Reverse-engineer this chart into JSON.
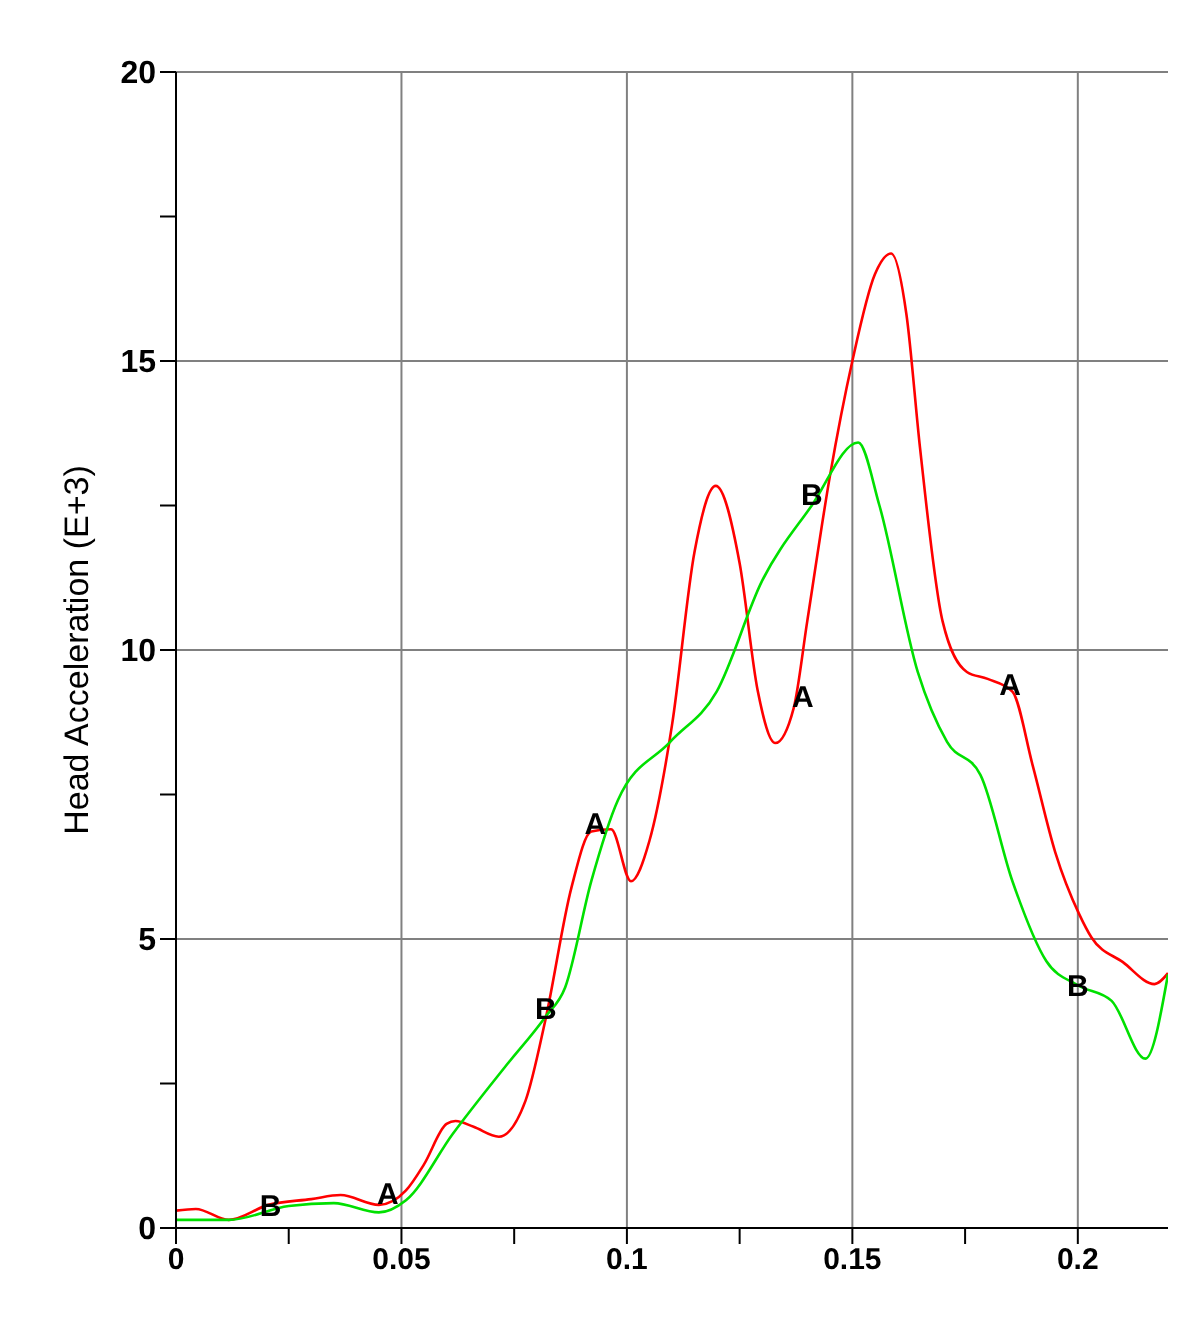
{
  "chart_data": {
    "type": "line",
    "ylabel": "Head Acceleration  (E+3)",
    "xlim": [
      0,
      0.22
    ],
    "ylim": [
      0,
      20
    ],
    "xticks": [
      0,
      {
        "value": 0.025,
        "label": null
      },
      0.05,
      {
        "value": 0.075,
        "label": null
      },
      0.1,
      {
        "value": 0.125,
        "label": null
      },
      0.15,
      {
        "value": 0.175,
        "label": null
      },
      0.2
    ],
    "yticks": [
      0,
      {
        "value": 2.5,
        "label": null
      },
      5,
      {
        "value": 7.5,
        "label": null
      },
      10,
      {
        "value": 12.5,
        "label": null
      },
      15,
      {
        "value": 17.5,
        "label": null
      },
      20
    ],
    "grid": true,
    "marker": "none",
    "line_style": "solid",
    "series": [
      {
        "color": "#ff0000",
        "x": [
          0,
          0.0044,
          0.0117,
          0.0205,
          0.03,
          0.0365,
          0.045,
          0.051,
          0.055,
          0.06,
          0.062,
          0.066,
          0.0716,
          0.0775,
          0.0819,
          0.0877,
          0.0921,
          0.0965,
          0.1009,
          0.105,
          0.11,
          0.115,
          0.1197,
          0.125,
          0.129,
          0.1329,
          0.137,
          0.14,
          0.145,
          0.15,
          0.155,
          0.1586,
          0.162,
          0.165,
          0.17,
          0.1754,
          0.18,
          0.1855,
          0.19,
          0.195,
          0.2003,
          0.203,
          0.21,
          0.217,
          0.22
        ],
        "values": [
          0.3,
          0.33,
          0.14,
          0.4,
          0.5,
          0.57,
          0.4,
          0.65,
          1.1,
          1.8,
          1.85,
          1.75,
          1.58,
          2.2,
          3.59,
          5.89,
          6.86,
          6.9,
          6.0,
          6.7,
          8.7,
          11.7,
          12.84,
          11.5,
          9.3,
          8.39,
          9.0,
          10.5,
          13.0,
          15.0,
          16.5,
          16.86,
          15.8,
          13.5,
          10.5,
          9.62,
          9.5,
          9.28,
          8.0,
          6.5,
          5.43,
          5.03,
          4.6,
          4.22,
          4.41
        ]
      },
      {
        "color": "#00e000",
        "x": [
          0,
          0.0117,
          0.025,
          0.035,
          0.045,
          0.051,
          0.0614,
          0.073,
          0.0819,
          0.0863,
          0.0921,
          0.098,
          0.1096,
          0.1199,
          0.13,
          0.141,
          0.1513,
          0.156,
          0.1645,
          0.171,
          0.1784,
          0.1855,
          0.193,
          0.2,
          0.2075,
          0.215,
          0.22
        ],
        "values": [
          0.14,
          0.14,
          0.38,
          0.43,
          0.27,
          0.48,
          1.63,
          2.79,
          3.65,
          4.16,
          6.0,
          7.4,
          8.41,
          9.28,
          11.2,
          12.5,
          13.59,
          12.5,
          9.62,
          8.41,
          7.84,
          6.0,
          4.62,
          4.2,
          3.93,
          2.93,
          4.39
        ]
      }
    ],
    "annotations": [
      {
        "text": "B",
        "x": 0.021,
        "y": 0.4
      },
      {
        "text": "A",
        "x": 0.047,
        "y": 0.6
      },
      {
        "text": "B",
        "x": 0.082,
        "y": 3.8
      },
      {
        "text": "A",
        "x": 0.093,
        "y": 7.0
      },
      {
        "text": "A",
        "x": 0.139,
        "y": 9.2
      },
      {
        "text": "B",
        "x": 0.141,
        "y": 12.7
      },
      {
        "text": "A",
        "x": 0.185,
        "y": 9.4
      },
      {
        "text": "B",
        "x": 0.2,
        "y": 4.2
      }
    ]
  }
}
